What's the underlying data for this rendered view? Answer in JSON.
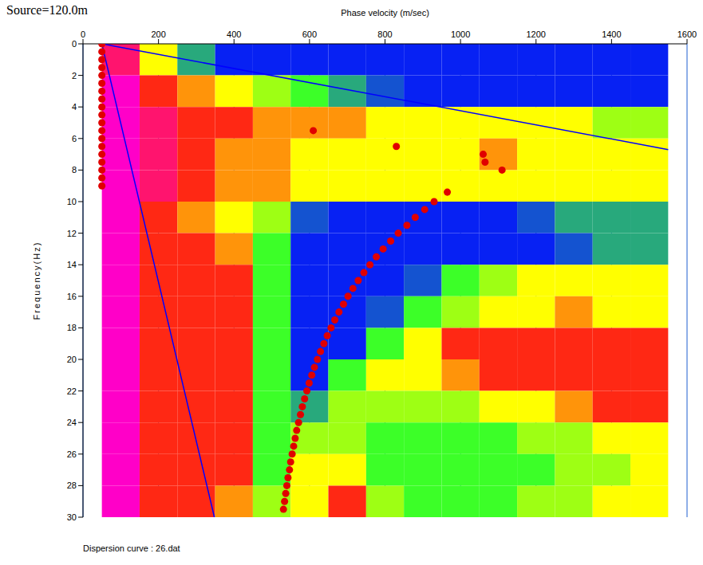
{
  "chart_data": {
    "type": "heatmap",
    "title": "Source=120.0m",
    "x_label": "Phase velocity (m/sec)",
    "y_label": "Frequency(Hz)",
    "footer": "Dispersion curve : 26.dat",
    "xlim": [
      0,
      1600
    ],
    "xticks": [
      0,
      200,
      400,
      600,
      800,
      1000,
      1200,
      1400,
      1600
    ],
    "ylim": [
      0,
      30
    ],
    "yticks": [
      0,
      2,
      4,
      6,
      8,
      10,
      12,
      14,
      16,
      18,
      20,
      22,
      24,
      26,
      28,
      30
    ],
    "grid": true,
    "cells": {
      "x_edges": [
        50,
        150,
        250,
        350,
        450,
        550,
        650,
        750,
        850,
        950,
        1050,
        1150,
        1250,
        1350,
        1450,
        1550
      ],
      "y_edges": [
        0,
        2,
        4,
        6,
        8,
        10,
        12,
        14,
        16,
        18,
        20,
        22,
        24,
        26,
        28,
        30
      ],
      "range": [
        0,
        1
      ],
      "values": [
        [
          0.9,
          0.6,
          0.3,
          0.1,
          0.1,
          0.1,
          0.1,
          0.1,
          0.1,
          0.1,
          0.1,
          0.1,
          0.1,
          0.1,
          0.1
        ],
        [
          1.0,
          0.8,
          0.7,
          0.6,
          0.5,
          0.4,
          0.3,
          0.2,
          0.1,
          0.1,
          0.1,
          0.1,
          0.1,
          0.1,
          0.1
        ],
        [
          1.0,
          0.9,
          0.8,
          0.8,
          0.7,
          0.7,
          0.7,
          0.6,
          0.6,
          0.6,
          0.6,
          0.6,
          0.6,
          0.5,
          0.5
        ],
        [
          1.0,
          0.9,
          0.8,
          0.7,
          0.7,
          0.6,
          0.6,
          0.6,
          0.6,
          0.6,
          0.7,
          0.6,
          0.6,
          0.6,
          0.6
        ],
        [
          1.0,
          0.9,
          0.8,
          0.7,
          0.7,
          0.6,
          0.6,
          0.6,
          0.6,
          0.6,
          0.6,
          0.6,
          0.6,
          0.6,
          0.6
        ],
        [
          1.0,
          0.8,
          0.7,
          0.6,
          0.5,
          0.2,
          0.1,
          0.1,
          0.1,
          0.1,
          0.1,
          0.2,
          0.3,
          0.3,
          0.3
        ],
        [
          1.0,
          0.8,
          0.8,
          0.7,
          0.4,
          0.1,
          0.1,
          0.1,
          0.1,
          0.1,
          0.1,
          0.1,
          0.2,
          0.3,
          0.3
        ],
        [
          1.0,
          0.8,
          0.8,
          0.8,
          0.4,
          0.1,
          0.1,
          0.1,
          0.2,
          0.4,
          0.5,
          0.6,
          0.6,
          0.6,
          0.6
        ],
        [
          1.0,
          0.8,
          0.8,
          0.8,
          0.4,
          0.1,
          0.1,
          0.2,
          0.4,
          0.5,
          0.6,
          0.6,
          0.7,
          0.6,
          0.6
        ],
        [
          1.0,
          0.8,
          0.8,
          0.8,
          0.4,
          0.1,
          0.1,
          0.4,
          0.6,
          0.8,
          0.8,
          0.8,
          0.8,
          0.8,
          0.8
        ],
        [
          1.0,
          0.8,
          0.8,
          0.8,
          0.4,
          0.1,
          0.4,
          0.6,
          0.6,
          0.7,
          0.8,
          0.8,
          0.8,
          0.8,
          0.8
        ],
        [
          1.0,
          0.8,
          0.8,
          0.8,
          0.4,
          0.3,
          0.5,
          0.5,
          0.5,
          0.5,
          0.6,
          0.6,
          0.7,
          0.8,
          0.8
        ],
        [
          1.0,
          0.8,
          0.8,
          0.8,
          0.4,
          0.5,
          0.5,
          0.4,
          0.4,
          0.4,
          0.4,
          0.5,
          0.5,
          0.6,
          0.6
        ],
        [
          1.0,
          0.8,
          0.8,
          0.8,
          0.4,
          0.6,
          0.6,
          0.4,
          0.4,
          0.4,
          0.4,
          0.4,
          0.5,
          0.5,
          0.6
        ],
        [
          1.0,
          0.8,
          0.8,
          0.7,
          0.5,
          0.6,
          0.8,
          0.5,
          0.4,
          0.4,
          0.4,
          0.5,
          0.5,
          0.6,
          0.6
        ]
      ]
    },
    "series": [
      {
        "type": "line",
        "color": "#0000ff",
        "line_style": "solid",
        "x": [
          50,
          348
        ],
        "y": [
          0,
          30
        ]
      },
      {
        "type": "line",
        "color": "#0000ff",
        "line_style": "solid",
        "x": [
          50,
          1550
        ],
        "y": [
          0,
          6.7
        ]
      },
      {
        "type": "scatter",
        "color": "#e00000",
        "marker": "circle",
        "x": [
          965,
          930,
          905,
          880,
          858,
          835,
          815,
          795,
          777,
          760,
          744,
          729,
          715,
          702,
          690,
          678,
          667,
          657,
          647,
          638,
          629,
          621,
          613,
          606,
          599,
          593,
          587,
          581,
          576,
          571,
          566,
          562,
          558,
          554,
          550,
          547,
          543,
          540,
          537,
          534,
          531,
          50,
          50,
          50,
          50,
          50,
          50,
          50,
          50,
          50,
          50,
          50,
          50,
          50,
          50,
          50,
          50,
          50,
          50,
          50,
          610,
          830,
          1060,
          1065,
          1110
        ],
        "y": [
          9.4,
          10,
          10.5,
          11,
          11.5,
          12,
          12.5,
          13,
          13.5,
          14,
          14.5,
          15,
          15.5,
          16,
          16.5,
          17,
          17.5,
          18,
          18.5,
          19,
          19.5,
          20,
          20.5,
          21,
          21.5,
          22,
          22.5,
          23,
          23.5,
          24,
          24.5,
          25,
          25.5,
          26,
          26.5,
          27,
          27.5,
          28,
          28.5,
          29,
          29.5,
          0,
          0.5,
          1,
          1.5,
          2,
          2.5,
          3,
          3.5,
          4,
          4.5,
          5,
          5.5,
          6,
          6.5,
          7,
          7.5,
          8,
          8.5,
          9,
          5.5,
          6.5,
          7.0,
          7.5,
          8.0
        ]
      }
    ]
  }
}
